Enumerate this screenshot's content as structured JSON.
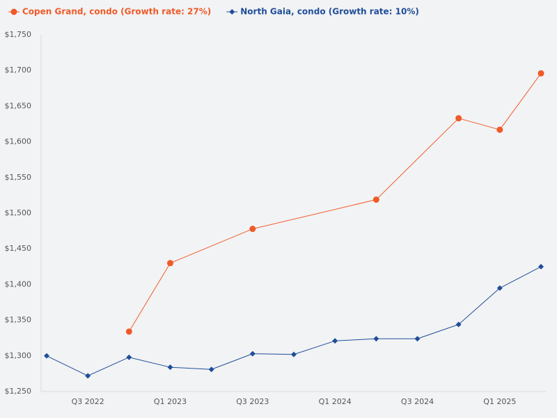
{
  "chart_data": {
    "type": "line",
    "categories": [
      null,
      "Q3 2022",
      null,
      "Q1 2023",
      null,
      "Q3 2023",
      null,
      "Q1 2024",
      null,
      "Q3 2024",
      null,
      "Q1 2025",
      null
    ],
    "series": [
      {
        "name": "Copen Grand, condo (Growth rate: 27%)",
        "color": "#f05a28",
        "marker": "circle",
        "values": [
          null,
          null,
          1334,
          1430,
          null,
          1478,
          null,
          null,
          1519,
          null,
          1633,
          1617,
          1696
        ]
      },
      {
        "name": "North Gaia, condo (Growth rate: 10%)",
        "color": "#1f4e99",
        "marker": "diamond",
        "values": [
          1300,
          1272,
          1298,
          1284,
          1281,
          1303,
          1302,
          1321,
          1324,
          1324,
          1344,
          1395,
          1425
        ]
      }
    ],
    "ylim": [
      1250,
      1750
    ],
    "yticks": [
      {
        "value": 1250,
        "label": "$1,250"
      },
      {
        "value": 1300,
        "label": "$1,300"
      },
      {
        "value": 1350,
        "label": "$1,350"
      },
      {
        "value": 1400,
        "label": "$1,400"
      },
      {
        "value": 1450,
        "label": "$1,450"
      },
      {
        "value": 1500,
        "label": "$1,500"
      },
      {
        "value": 1550,
        "label": "$1,550"
      },
      {
        "value": 1600,
        "label": "$1,600"
      },
      {
        "value": 1650,
        "label": "$1,650"
      },
      {
        "value": 1700,
        "label": "$1,700"
      },
      {
        "value": 1750,
        "label": "$1,750"
      }
    ],
    "grid": false,
    "legend": "top"
  }
}
